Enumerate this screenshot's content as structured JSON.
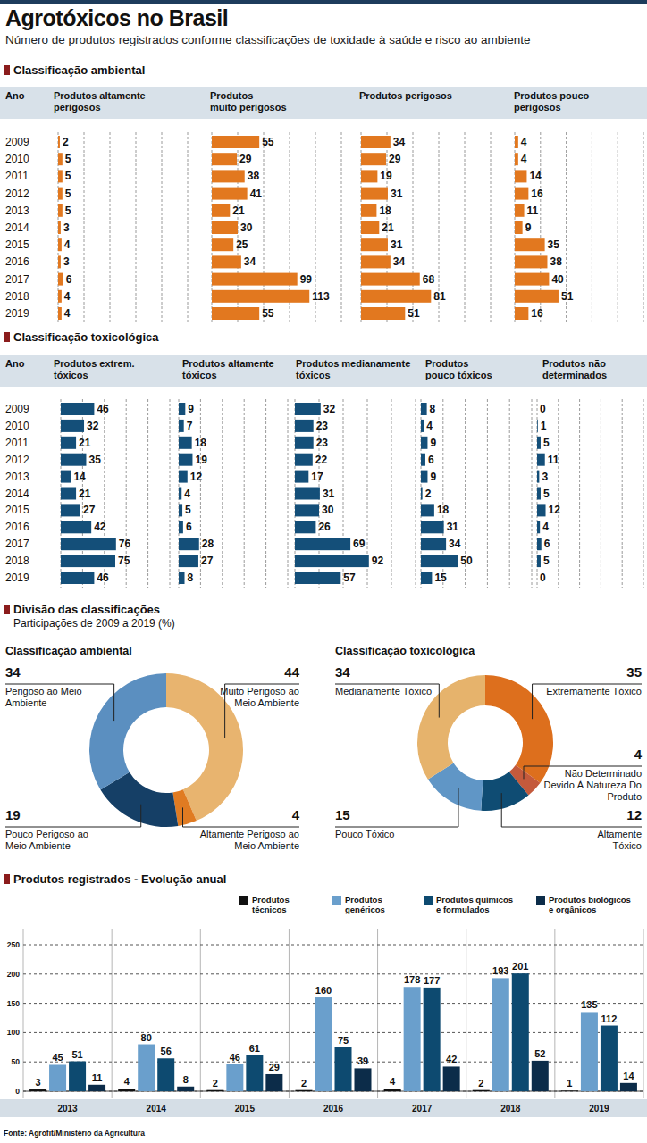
{
  "title": "Agrotóxicos no Brasil",
  "subtitle": "Número de produtos registrados conforme classificações de toxidade à saúde e risco ao ambiente",
  "section": {
    "title": "Divisão das classificações",
    "subtitle": "Participações de 2009 a 2019 (%)"
  },
  "source": "Fonte: Agrofit/Ministério da Agricultura",
  "chart_data": [
    {
      "type": "bar",
      "orientation": "horizontal",
      "title": "Classificação ambiental",
      "ylabel": "Ano",
      "categories": [
        "2009",
        "2010",
        "2011",
        "2012",
        "2013",
        "2014",
        "2015",
        "2016",
        "2017",
        "2018",
        "2019"
      ],
      "series": [
        {
          "name": "Produtos altamente\nperigosos",
          "color": "#e2781f",
          "values": [
            2,
            5,
            5,
            5,
            5,
            3,
            4,
            3,
            6,
            4,
            4
          ]
        },
        {
          "name": "Produtos\nmuito perigosos",
          "color": "#e2781f",
          "values": [
            55,
            29,
            38,
            41,
            21,
            30,
            25,
            34,
            99,
            113,
            55
          ]
        },
        {
          "name": "Produtos perigosos",
          "color": "#e2781f",
          "values": [
            34,
            29,
            19,
            31,
            18,
            21,
            31,
            34,
            68,
            81,
            51
          ]
        },
        {
          "name": "Produtos pouco\nperigosos",
          "color": "#e2781f",
          "values": [
            4,
            4,
            14,
            16,
            11,
            9,
            35,
            38,
            40,
            51,
            16
          ]
        }
      ],
      "xlim": [
        0,
        150
      ],
      "xticks": [
        0,
        30,
        60,
        90,
        120,
        150
      ],
      "grid": true,
      "tick_labels": false,
      "data_labels": true
    },
    {
      "type": "bar",
      "orientation": "horizontal",
      "title": "Classificação toxicológica",
      "ylabel": "Ano",
      "categories": [
        "2009",
        "2010",
        "2011",
        "2012",
        "2013",
        "2014",
        "2015",
        "2016",
        "2017",
        "2018",
        "2019"
      ],
      "series": [
        {
          "name": "Produtos extrem.\ntóxicos",
          "color": "#144f79",
          "values": [
            46,
            32,
            21,
            35,
            14,
            21,
            27,
            42,
            76,
            75,
            46
          ]
        },
        {
          "name": "Produtos altamente\ntóxicos",
          "color": "#144f79",
          "values": [
            9,
            7,
            18,
            19,
            12,
            4,
            5,
            6,
            28,
            27,
            8
          ]
        },
        {
          "name": "Produtos medianamente\ntóxicos",
          "color": "#144f79",
          "values": [
            32,
            23,
            23,
            22,
            17,
            31,
            30,
            26,
            69,
            92,
            57
          ]
        },
        {
          "name": "Produtos\npouco tóxicos",
          "color": "#144f79",
          "values": [
            8,
            4,
            9,
            6,
            9,
            2,
            18,
            31,
            34,
            50,
            15
          ]
        },
        {
          "name": "Produtos não\ndeterminados",
          "color": "#144f79",
          "values": [
            0,
            1,
            5,
            11,
            3,
            5,
            12,
            4,
            6,
            5,
            0
          ]
        }
      ],
      "xlim": [
        0,
        150
      ],
      "xticks": [
        0,
        30,
        60,
        90,
        120,
        150
      ],
      "grid": true,
      "tick_labels": false,
      "data_labels": true
    },
    {
      "type": "donut",
      "title": "Classificação ambiental",
      "categories": [
        "Muito Perigoso ao\nMeio Ambiente",
        "Altamente Perigoso ao\nMeio Ambiente",
        "Pouco Perigoso ao\nMeio Ambiente",
        "Perigoso ao Meio\nAmbiente"
      ],
      "values": [
        44,
        4,
        19,
        34
      ],
      "colors": [
        "#e8b46f",
        "#e07b22",
        "#153f66",
        "#5b8fc0"
      ],
      "data_labels": true
    },
    {
      "type": "donut",
      "title": "Classificação toxicológica",
      "categories": [
        "Extremamente Tóxico",
        "Não Determinado\nDevido À Natureza Do\nProduto",
        "Altamente\nTóxico",
        "Pouco Tóxico",
        "Medianamente Tóxico"
      ],
      "values": [
        35,
        4,
        12,
        15,
        34
      ],
      "colors": [
        "#dd6f1d",
        "#c45a3c",
        "#0f4c73",
        "#6096c6",
        "#e6b36c"
      ],
      "data_labels": true
    },
    {
      "type": "bar",
      "title": "Produtos registrados - Evolução anual",
      "categories": [
        "2013",
        "2014",
        "2015",
        "2016",
        "2017",
        "2018",
        "2019"
      ],
      "series": [
        {
          "name": "Produtos\ntécnicos",
          "color": "#111111",
          "values": [
            3,
            4,
            2,
            2,
            4,
            2,
            1
          ]
        },
        {
          "name": "Produtos\ngenéricos",
          "color": "#6a9fcc",
          "values": [
            45,
            80,
            46,
            160,
            178,
            193,
            135
          ]
        },
        {
          "name": "Produtos químicos\ne formulados",
          "color": "#0d4a70",
          "values": [
            51,
            56,
            61,
            75,
            177,
            201,
            112
          ]
        },
        {
          "name": "Produtos biológicos\ne orgânicos",
          "color": "#0c2c49",
          "values": [
            11,
            8,
            29,
            39,
            42,
            52,
            14
          ]
        }
      ],
      "ylim": [
        0,
        250
      ],
      "yticks": [
        0,
        50,
        100,
        150,
        200,
        250
      ],
      "grid": true,
      "data_labels": true,
      "legend": "top"
    }
  ]
}
